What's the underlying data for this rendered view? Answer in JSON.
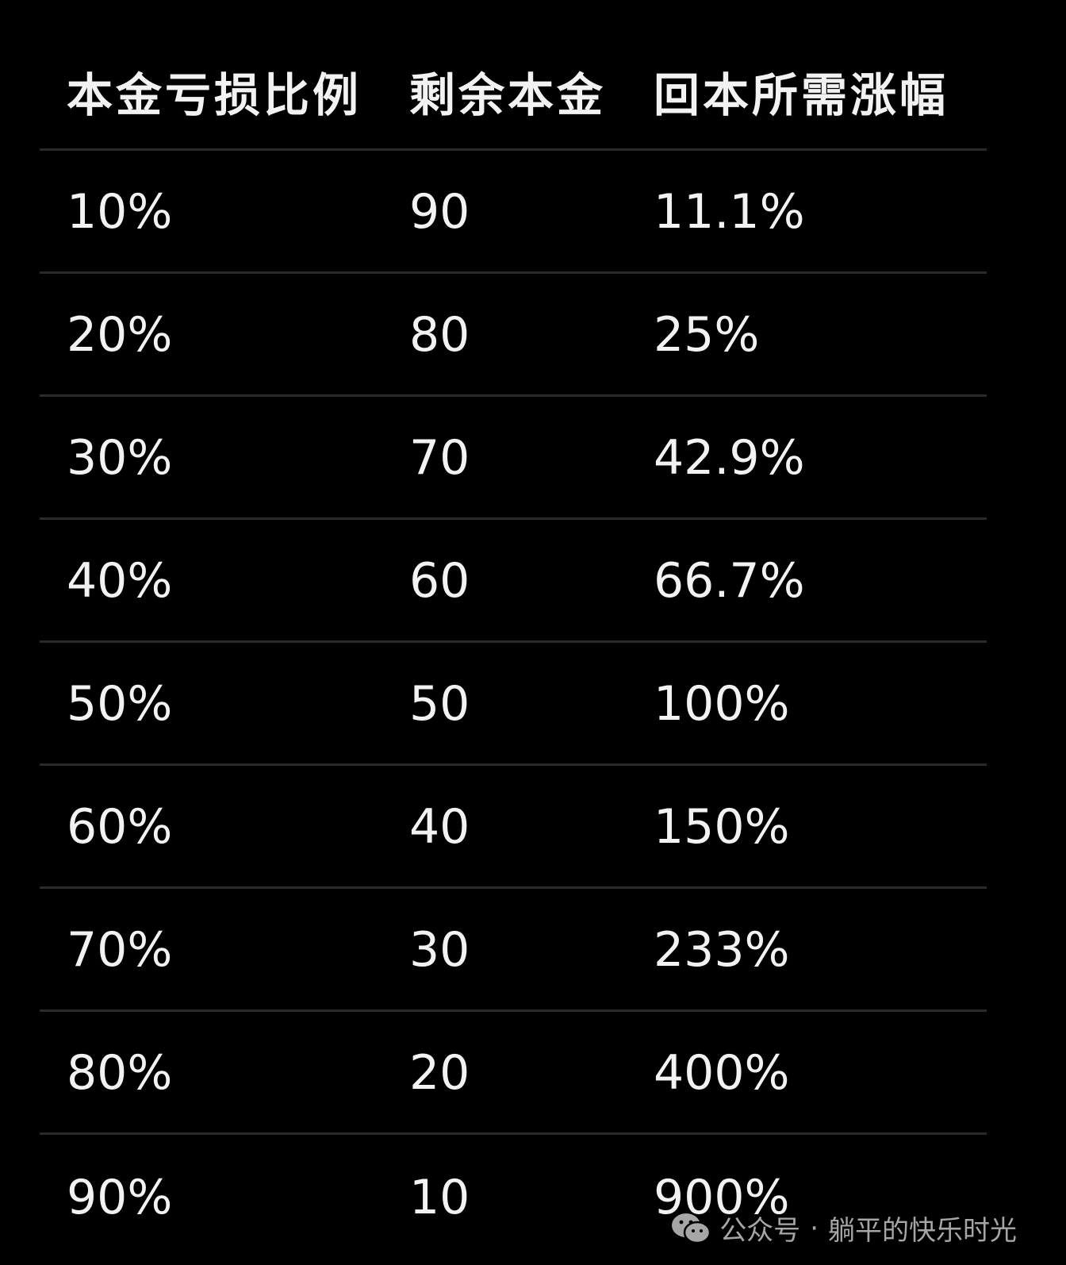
{
  "table": {
    "headers": [
      "本金亏损比例",
      "剩余本金",
      "回本所需涨幅"
    ],
    "rows": [
      [
        "10%",
        "90",
        "11.1%"
      ],
      [
        "20%",
        "80",
        "25%"
      ],
      [
        "30%",
        "70",
        "42.9%"
      ],
      [
        "40%",
        "60",
        "66.7%"
      ],
      [
        "50%",
        "50",
        "100%"
      ],
      [
        "60%",
        "40",
        "150%"
      ],
      [
        "70%",
        "30",
        "233%"
      ],
      [
        "80%",
        "20",
        "400%"
      ],
      [
        "90%",
        "10",
        "900%"
      ]
    ]
  },
  "watermark": {
    "source": "公众号",
    "separator": "·",
    "account": "躺平的快乐时光",
    "icon": "wechat-icon"
  }
}
